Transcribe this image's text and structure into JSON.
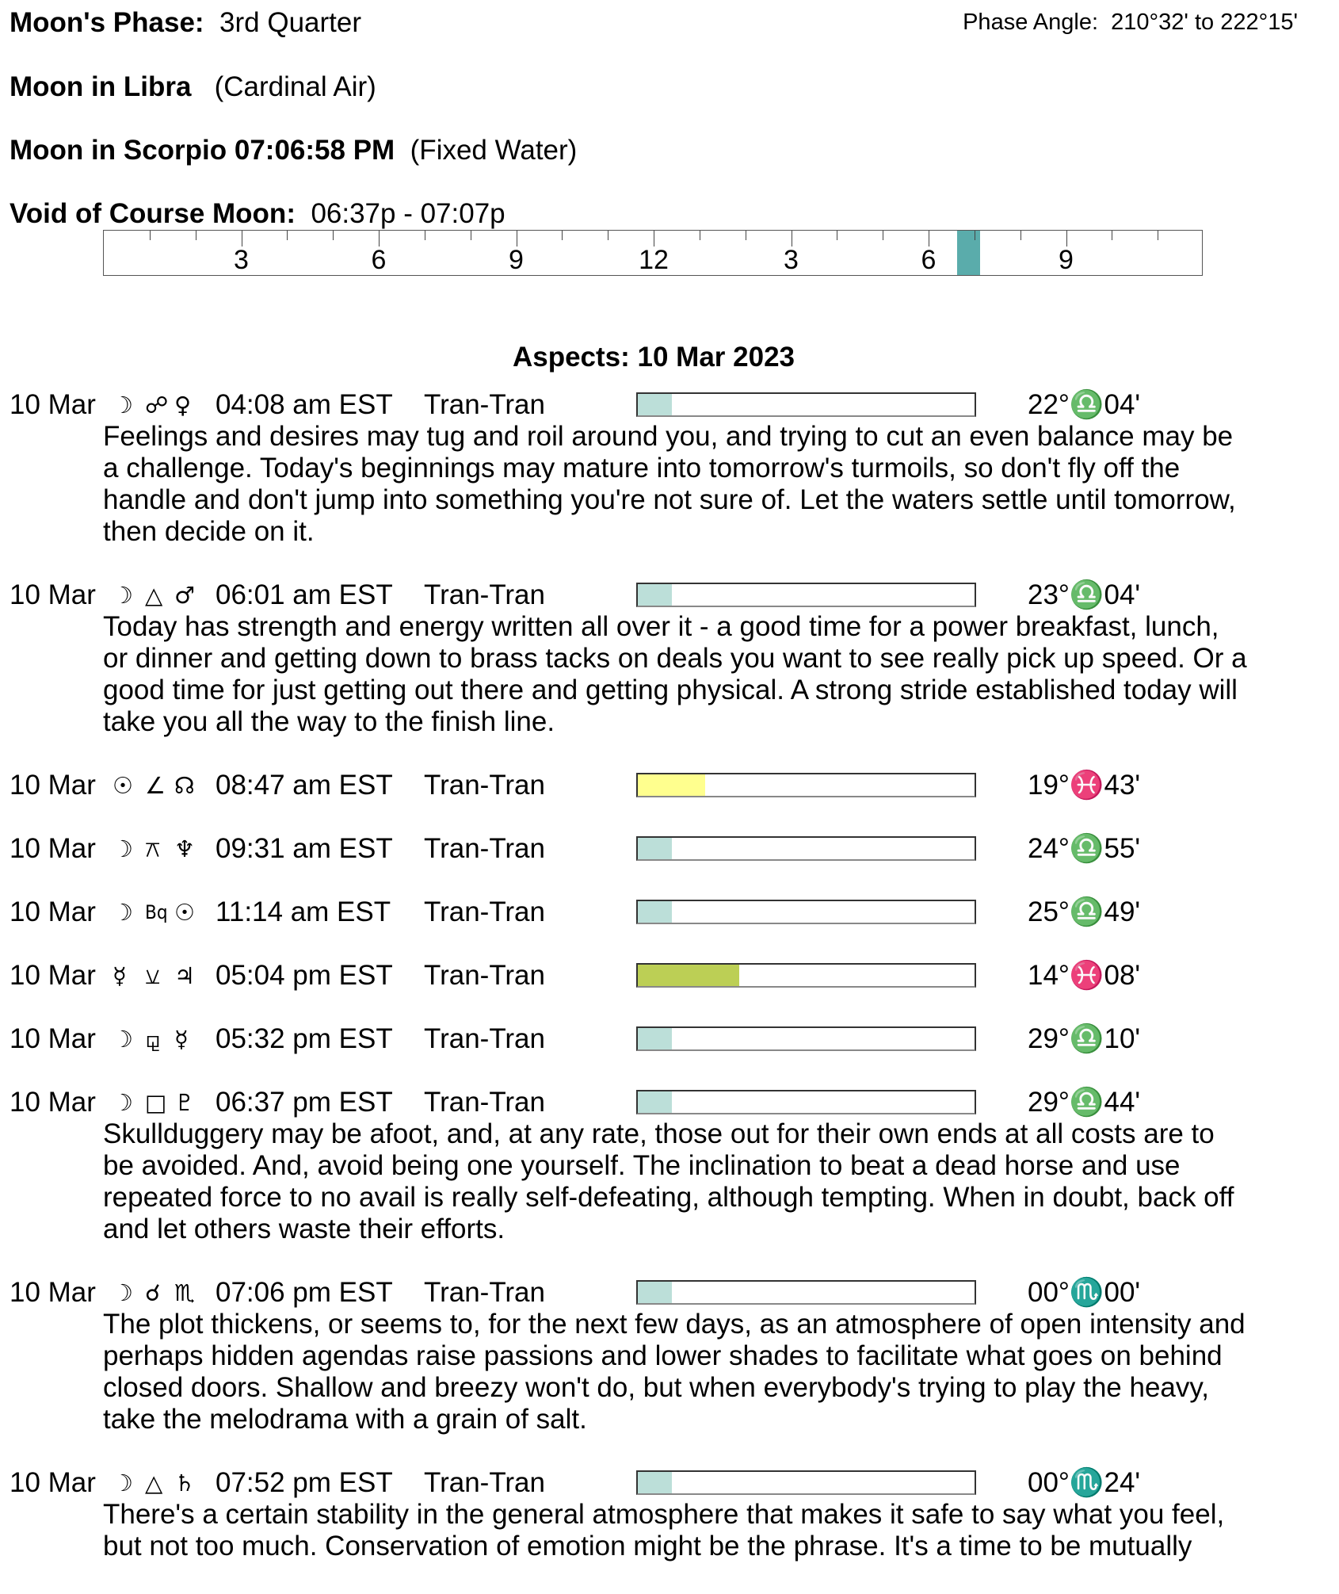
{
  "header": {
    "phase_label": "Moon's Phase:",
    "phase_value": "3rd Quarter",
    "phase_angle_label": "Phase Angle:",
    "phase_angle_value": "210°32' to 222°15'",
    "moon_sign_label": "Moon in Libra",
    "moon_sign_element": "(Cardinal Air)",
    "moon_ingress_label": "Moon in Scorpio 07:06:58 PM",
    "moon_ingress_element": "(Fixed Water)",
    "void_label": "Void of Course Moon:",
    "void_value": "06:37p -  07:07p"
  },
  "timeline": {
    "labels": [
      "3",
      "6",
      "9",
      "12",
      "3",
      "6",
      "9"
    ],
    "void_start_hour": 18.617,
    "void_end_hour": 19.117,
    "void_color": "#5aacab"
  },
  "aspects_title": "Aspects: 10 Mar 2023",
  "colors": {
    "teal": "#bcdfd9",
    "yellow": "#ffff8e",
    "green": "#bccf55"
  },
  "aspects": [
    {
      "date": "10 Mar",
      "p1": "☽",
      "asp": "☍",
      "p2": "♀",
      "time": "04:08 am EST",
      "type": "Tran-Tran",
      "strength": 0.1,
      "color": "teal",
      "pos": "22°♎04'",
      "text": [
        "Feelings and desires may tug and roil around you, and trying to cut an even balance may be",
        "a challenge. Today's beginnings may mature into tomorrow's turmoils, so don't fly off the",
        "handle and don't jump into something you're not sure of. Let the waters settle until tomorrow,",
        "then decide on it."
      ]
    },
    {
      "date": "10 Mar",
      "p1": "☽",
      "asp": "△",
      "p2": "♂",
      "time": "06:01 am EST",
      "type": "Tran-Tran",
      "strength": 0.1,
      "color": "teal",
      "pos": "23°♎04'",
      "text": [
        "Today has strength and energy written all over it - a good time for a power breakfast, lunch,",
        "or dinner and getting down to brass tacks on deals you want to see really pick up speed. Or a",
        "good time for just getting out there and getting physical. A strong stride established today will",
        "take you all the way to the finish line."
      ]
    },
    {
      "date": "10 Mar",
      "p1": "☉",
      "asp": "∠",
      "p2": "☊",
      "time": "08:47 am EST",
      "type": "Tran-Tran",
      "strength": 0.2,
      "color": "yellow",
      "pos": "19°♓43'",
      "text": []
    },
    {
      "date": "10 Mar",
      "p1": "☽",
      "asp": "⚻",
      "p2": "♆",
      "time": "09:31 am EST",
      "type": "Tran-Tran",
      "strength": 0.1,
      "color": "teal",
      "pos": "24°♎55'",
      "text": []
    },
    {
      "date": "10 Mar",
      "p1": "☽",
      "asp": "Bq",
      "p2": "☉",
      "time": "11:14 am EST",
      "type": "Tran-Tran",
      "strength": 0.1,
      "color": "teal",
      "pos": "25°♎49'",
      "text": []
    },
    {
      "date": "10 Mar",
      "p1": "☿",
      "asp": "⚺",
      "p2": "♃",
      "time": "05:04 pm EST",
      "type": "Tran-Tran",
      "strength": 0.3,
      "color": "green",
      "pos": "14°♓08'",
      "text": []
    },
    {
      "date": "10 Mar",
      "p1": "☽",
      "asp": "⚼",
      "p2": "☿",
      "time": "05:32 pm EST",
      "type": "Tran-Tran",
      "strength": 0.1,
      "color": "teal",
      "pos": "29°♎10'",
      "text": []
    },
    {
      "date": "10 Mar",
      "p1": "☽",
      "asp": "□",
      "p2": "♇",
      "time": "06:37 pm EST",
      "type": "Tran-Tran",
      "strength": 0.1,
      "color": "teal",
      "pos": "29°♎44'",
      "text": [
        "Skullduggery may be afoot, and, at any rate, those out for their own ends at all costs are to",
        "be avoided. And, avoid being one yourself. The inclination to beat a dead horse and use",
        "repeated force to no avail is really self-defeating, although tempting. When in doubt, back off",
        "and let others waste their efforts."
      ]
    },
    {
      "date": "10 Mar",
      "p1": "☽",
      "asp": "☌",
      "p2": "♏",
      "time": "07:06 pm EST",
      "type": "Tran-Tran",
      "strength": 0.1,
      "color": "teal",
      "pos": "00°♏00'",
      "text": [
        "The plot thickens, or seems to, for the next few days, as an atmosphere of open intensity and",
        "perhaps hidden agendas raise passions and lower shades to facilitate what goes on behind",
        "closed doors. Shallow and breezy won't do, but when everybody's trying to play the heavy,",
        "take the melodrama with a grain of salt."
      ]
    },
    {
      "date": "10 Mar",
      "p1": "☽",
      "asp": "△",
      "p2": "♄",
      "time": "07:52 pm EST",
      "type": "Tran-Tran",
      "strength": 0.1,
      "color": "teal",
      "pos": "00°♏24'",
      "text": [
        "There's a certain stability in the general atmosphere that makes it safe to say what you feel,",
        "but not too much. Conservation of emotion might be the phrase. It's a time to be mutually"
      ]
    }
  ]
}
